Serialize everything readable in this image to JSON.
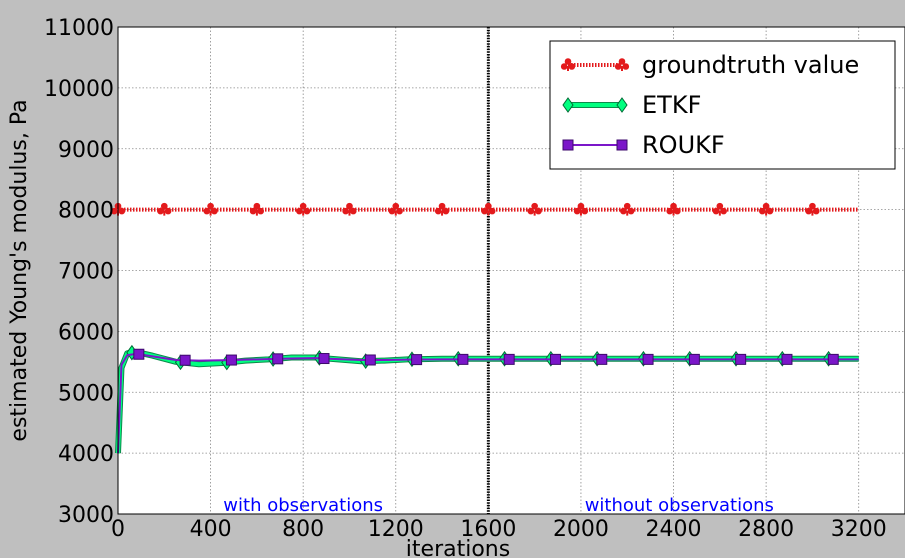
{
  "chart_data": {
    "type": "line",
    "xlabel": "iterations",
    "ylabel": "estimated Young's modulus, Pa",
    "xlim": [
      0,
      3400
    ],
    "ylim": [
      3000,
      11000
    ],
    "xticks": [
      0,
      400,
      800,
      1200,
      1600,
      2000,
      2400,
      2800,
      3200
    ],
    "yticks": [
      3000,
      4000,
      5000,
      6000,
      7000,
      8000,
      9000,
      10000,
      11000
    ],
    "grid": true,
    "legend_position": "top-right",
    "vertical_line_x": 1600,
    "annotations": [
      {
        "text": "with observations",
        "x": 800,
        "y": 3150
      },
      {
        "text": "without observations",
        "x": 2425,
        "y": 3150
      }
    ],
    "series": [
      {
        "name": "groundtruth value",
        "color": "#e31a1c",
        "marker": "club",
        "style": "dotted",
        "x": [
          0,
          200,
          400,
          600,
          800,
          1000,
          1200,
          1400,
          1600,
          1800,
          2000,
          2200,
          2400,
          2600,
          2800,
          3000,
          3200
        ],
        "y": [
          8000,
          8000,
          8000,
          8000,
          8000,
          8000,
          8000,
          8000,
          8000,
          8000,
          8000,
          8000,
          8000,
          8000,
          8000,
          8000,
          8000
        ],
        "marker_x": [
          0,
          200,
          400,
          600,
          800,
          1000,
          1200,
          1400,
          1600,
          1800,
          2000,
          2200,
          2400,
          2600,
          2800,
          3000
        ]
      },
      {
        "name": "ETKF",
        "color": "#00ff7f",
        "marker": "diamond",
        "style": "solid",
        "x": [
          0,
          15,
          40,
          80,
          150,
          250,
          350,
          450,
          550,
          650,
          750,
          850,
          950,
          1050,
          1150,
          1250,
          1400,
          1600,
          1800,
          2000,
          2400,
          2800,
          3200
        ],
        "y": [
          4000,
          5400,
          5640,
          5660,
          5600,
          5500,
          5460,
          5480,
          5520,
          5540,
          5570,
          5570,
          5540,
          5510,
          5520,
          5540,
          5550,
          5550,
          5550,
          5550,
          5550,
          5550,
          5550
        ],
        "marker_x": [
          60,
          270,
          470,
          670,
          870,
          1070,
          1270,
          1470,
          1670,
          1870,
          2070,
          2270,
          2470,
          2670,
          2870,
          3070
        ]
      },
      {
        "name": "ROUKF",
        "color": "#7b16c9",
        "marker": "square",
        "style": "solid",
        "x": [
          0,
          15,
          40,
          80,
          150,
          250,
          350,
          450,
          550,
          650,
          750,
          850,
          950,
          1050,
          1150,
          1250,
          1400,
          1600,
          1800,
          2000,
          2400,
          2800,
          3200
        ],
        "y": [
          4000,
          5450,
          5610,
          5630,
          5590,
          5530,
          5520,
          5525,
          5535,
          5545,
          5555,
          5560,
          5545,
          5530,
          5530,
          5535,
          5540,
          5540,
          5540,
          5540,
          5540,
          5540,
          5540
        ],
        "marker_x": [
          90,
          290,
          490,
          690,
          890,
          1090,
          1290,
          1490,
          1690,
          1890,
          2090,
          2290,
          2490,
          2690,
          2890,
          3090
        ]
      }
    ]
  }
}
